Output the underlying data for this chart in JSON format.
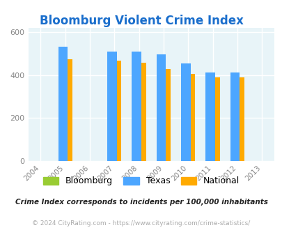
{
  "title": "Bloomburg Violent Crime Index",
  "x_tick_years": [
    2004,
    2005,
    2006,
    2007,
    2008,
    2009,
    2010,
    2011,
    2012,
    2013
  ],
  "bar_years": [
    2005,
    2007,
    2008,
    2009,
    2010,
    2011,
    2012
  ],
  "bloomburg": [
    0,
    0,
    0,
    0,
    0,
    0,
    0
  ],
  "texas": [
    530,
    510,
    510,
    495,
    455,
    410,
    410
  ],
  "national": [
    472,
    465,
    458,
    428,
    404,
    388,
    388
  ],
  "bar_width": 0.38,
  "xlim": [
    2003.5,
    2013.5
  ],
  "ylim": [
    0,
    620
  ],
  "yticks": [
    0,
    200,
    400,
    600
  ],
  "bg_color": "#e8f4f8",
  "texas_color": "#4da6ff",
  "national_color": "#ffaa00",
  "bloomburg_color": "#99cc33",
  "grid_color": "#ccdddd",
  "title_color": "#1a6ecc",
  "legend_labels": [
    "Bloomburg",
    "Texas",
    "National"
  ],
  "footnote1": "Crime Index corresponds to incidents per 100,000 inhabitants",
  "footnote2": "© 2024 CityRating.com - https://www.cityrating.com/crime-statistics/",
  "outer_bg": "#ffffff",
  "tick_label_color": "#888888",
  "footnote1_color": "#222222",
  "footnote2_color": "#aaaaaa"
}
